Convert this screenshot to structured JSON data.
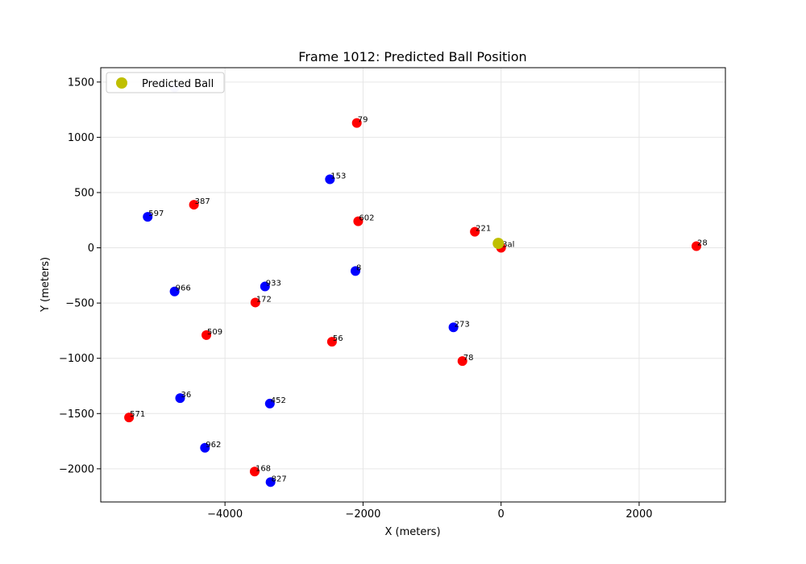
{
  "chart_data": {
    "type": "scatter",
    "title": "Frame 1012: Predicted Ball Position",
    "xlabel": "X (meters)",
    "ylabel": "Y (meters)",
    "xlim": [
      -5800,
      3250
    ],
    "ylim": [
      -2300,
      1630
    ],
    "xticks": [
      -4000,
      -2000,
      0,
      2000
    ],
    "yticks": [
      1500,
      1000,
      500,
      0,
      -500,
      -1000,
      -1500,
      -2000
    ],
    "xtick_labels": [
      "−4000",
      "−2000",
      "0",
      "2000"
    ],
    "ytick_labels": [
      "1500",
      "1000",
      "500",
      "0",
      "−500",
      "−1000",
      "−1500",
      "−2000"
    ],
    "grid": true,
    "legend": {
      "location": "upper-left",
      "entries": [
        {
          "label": "Predicted Ball",
          "color": "#bfbf00"
        }
      ]
    },
    "colors": {
      "red_team": "#ff0000",
      "blue_team": "#0000ff",
      "ball": "#bfbf00",
      "faded": "#ccccff"
    },
    "points": [
      {
        "label": "79",
        "x": -2090,
        "y": 1130,
        "team": "red"
      },
      {
        "label": "387",
        "x": -4450,
        "y": 390,
        "team": "red"
      },
      {
        "label": "602",
        "x": -2070,
        "y": 240,
        "team": "red"
      },
      {
        "label": "221",
        "x": -380,
        "y": 145,
        "team": "red"
      },
      {
        "label": "28",
        "x": 2830,
        "y": 15,
        "team": "red"
      },
      {
        "label": "172",
        "x": -3560,
        "y": -495,
        "team": "red"
      },
      {
        "label": "509",
        "x": -4270,
        "y": -790,
        "team": "red"
      },
      {
        "label": "56",
        "x": -2450,
        "y": -850,
        "team": "red"
      },
      {
        "label": "78",
        "x": -560,
        "y": -1025,
        "team": "red"
      },
      {
        "label": "571",
        "x": -5390,
        "y": -1535,
        "team": "red"
      },
      {
        "label": "168",
        "x": -3570,
        "y": -2025,
        "team": "red"
      },
      {
        "label": "Bal",
        "x": 0,
        "y": 0,
        "team": "red"
      },
      {
        "label": "153",
        "x": -2480,
        "y": 620,
        "team": "blue"
      },
      {
        "label": "597",
        "x": -5120,
        "y": 280,
        "team": "blue"
      },
      {
        "label": "8",
        "x": -2110,
        "y": -210,
        "team": "blue"
      },
      {
        "label": "933",
        "x": -3420,
        "y": -350,
        "team": "blue"
      },
      {
        "label": "966",
        "x": -4730,
        "y": -395,
        "team": "blue"
      },
      {
        "label": "273",
        "x": -690,
        "y": -720,
        "team": "blue"
      },
      {
        "label": "36",
        "x": -4650,
        "y": -1360,
        "team": "blue"
      },
      {
        "label": "452",
        "x": -3350,
        "y": -1410,
        "team": "blue"
      },
      {
        "label": "962",
        "x": -4290,
        "y": -1810,
        "team": "blue"
      },
      {
        "label": "827",
        "x": -3340,
        "y": -2120,
        "team": "blue"
      },
      {
        "label": "",
        "x": -4730,
        "y": 1450,
        "team": "faded"
      }
    ],
    "predicted_ball": {
      "x": -40,
      "y": 40
    }
  }
}
